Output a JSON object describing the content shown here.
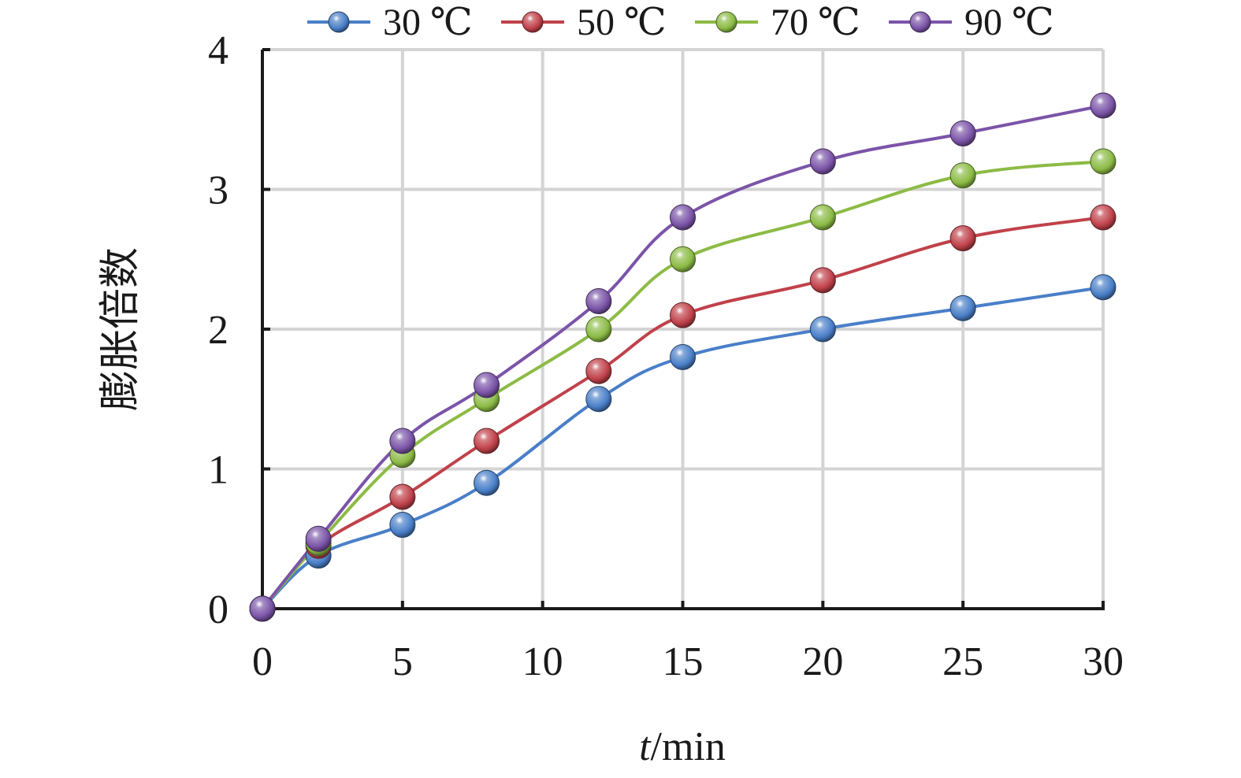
{
  "chart_data": {
    "type": "line",
    "xlabel": {
      "italic": "t",
      "rest": "/min"
    },
    "ylabel": "膨胀倍数",
    "xlim": [
      0,
      30
    ],
    "ylim": [
      0,
      4
    ],
    "x_ticks": [
      "0",
      "5",
      "10",
      "15",
      "20",
      "25",
      "30"
    ],
    "y_ticks": [
      "0",
      "1",
      "2",
      "3",
      "4"
    ],
    "grid": true,
    "legend_position": "top",
    "x": [
      0,
      2,
      5,
      8,
      12,
      15,
      20,
      25,
      30
    ],
    "series": [
      {
        "name": "30 ℃",
        "color": "#4a7fc8",
        "values": [
          0,
          0.38,
          0.6,
          0.9,
          1.5,
          1.8,
          2.0,
          2.15,
          2.3
        ]
      },
      {
        "name": "50 ℃",
        "color": "#c0414a",
        "values": [
          0,
          0.45,
          0.8,
          1.2,
          1.7,
          2.1,
          2.35,
          2.65,
          2.8
        ]
      },
      {
        "name": "70 ℃",
        "color": "#8cbb45",
        "values": [
          0,
          0.47,
          1.1,
          1.5,
          2.0,
          2.5,
          2.8,
          3.1,
          3.2
        ]
      },
      {
        "name": "90 ℃",
        "color": "#7b54a8",
        "values": [
          0,
          0.5,
          1.2,
          1.6,
          2.2,
          2.8,
          3.2,
          3.4,
          3.6
        ]
      }
    ]
  }
}
